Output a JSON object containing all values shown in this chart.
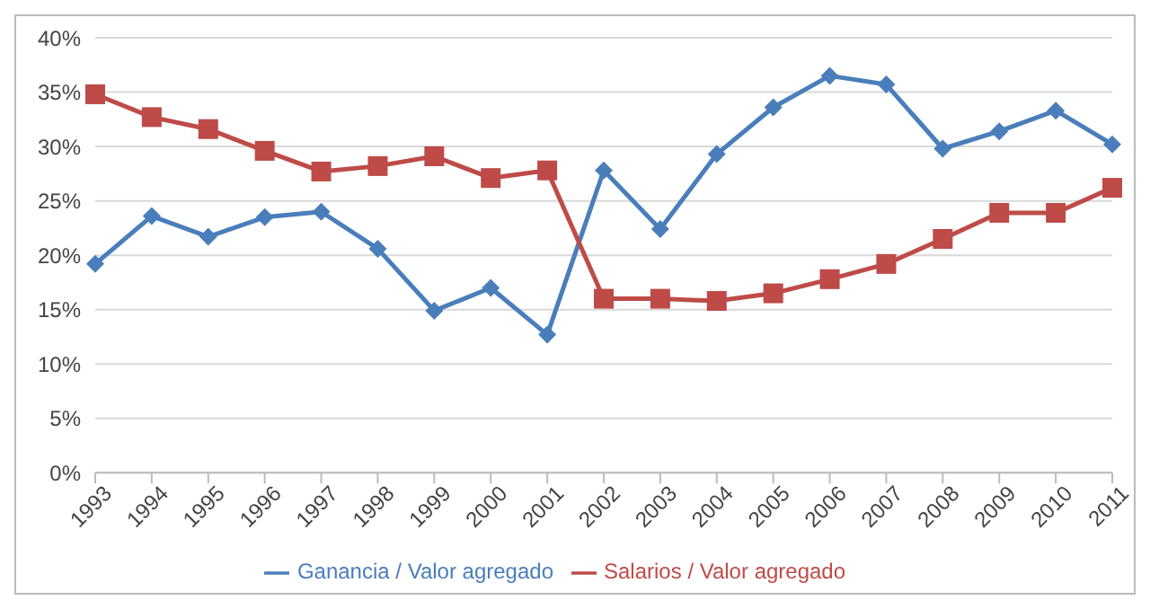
{
  "chart_data": {
    "type": "line",
    "categories": [
      "1993",
      "1994",
      "1995",
      "1996",
      "1997",
      "1998",
      "1999",
      "2000",
      "2001",
      "2002",
      "2003",
      "2004",
      "2005",
      "2006",
      "2007",
      "2008",
      "2009",
      "2010",
      "2011"
    ],
    "series": [
      {
        "name": "Ganancia / Valor agregado",
        "color": "#4a7ebb",
        "marker": "diamond",
        "values": [
          19.2,
          23.6,
          21.7,
          23.5,
          24.0,
          20.6,
          14.9,
          17.0,
          12.7,
          27.8,
          22.4,
          29.3,
          33.6,
          36.5,
          35.7,
          29.8,
          31.4,
          33.3,
          30.2
        ]
      },
      {
        "name": "Salarios / Valor agregado",
        "color": "#be4b48",
        "marker": "square",
        "values": [
          34.8,
          32.7,
          31.6,
          29.6,
          27.7,
          28.2,
          29.1,
          27.1,
          27.8,
          16.0,
          16.0,
          15.8,
          16.5,
          17.8,
          19.2,
          21.5,
          23.9,
          23.9,
          26.2
        ]
      }
    ],
    "ylim": [
      0,
      40
    ],
    "yticks": [
      {
        "value": 0,
        "label": "0%"
      },
      {
        "value": 5,
        "label": "5%"
      },
      {
        "value": 10,
        "label": "10%"
      },
      {
        "value": 15,
        "label": "15%"
      },
      {
        "value": 20,
        "label": "20%"
      },
      {
        "value": 25,
        "label": "25%"
      },
      {
        "value": 30,
        "label": "30%"
      },
      {
        "value": 35,
        "label": "35%"
      },
      {
        "value": 40,
        "label": "40%"
      }
    ],
    "grid": "y",
    "legend": "bottom",
    "line_style": "solid"
  }
}
